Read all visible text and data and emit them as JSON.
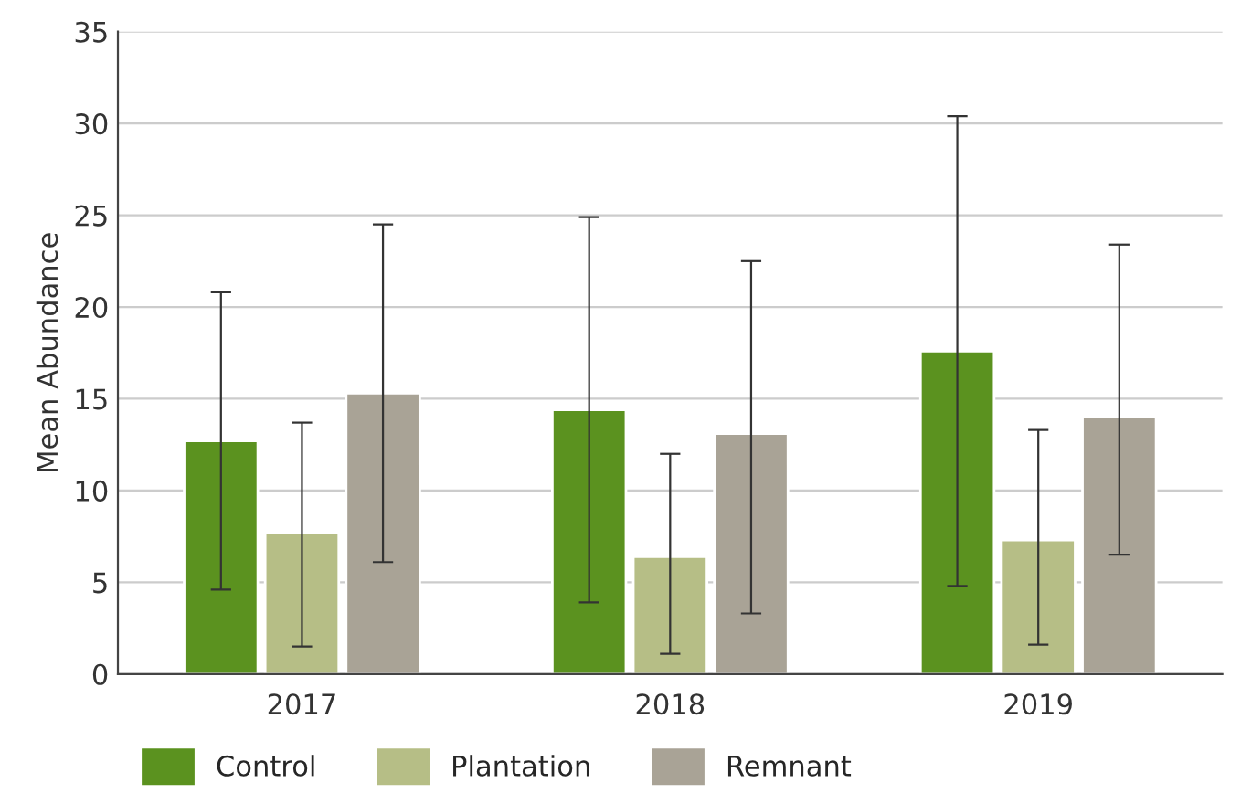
{
  "chart_data": {
    "type": "bar",
    "ylabel": "Mean Abundance",
    "categories": [
      "2017",
      "2018",
      "2019"
    ],
    "series": [
      {
        "name": "Control",
        "color": "#5b921f",
        "values": [
          12.7,
          14.4,
          17.6
        ],
        "errors": [
          [
            4.6,
            20.8
          ],
          [
            3.9,
            24.9
          ],
          [
            4.8,
            30.4
          ]
        ]
      },
      {
        "name": "Plantation",
        "color": "#b6be86",
        "values": [
          7.7,
          6.4,
          7.3
        ],
        "errors": [
          [
            1.5,
            13.7
          ],
          [
            1.1,
            12.0
          ],
          [
            1.6,
            13.3
          ]
        ]
      },
      {
        "name": "Remnant",
        "color": "#a9a396",
        "values": [
          15.3,
          13.1,
          14.0
        ],
        "errors": [
          [
            6.1,
            24.5
          ],
          [
            3.3,
            22.5
          ],
          [
            6.5,
            23.4
          ]
        ]
      }
    ],
    "ylim": [
      0,
      35
    ],
    "yticks": [
      0,
      5,
      10,
      15,
      20,
      25,
      30,
      35
    ],
    "grid": "y",
    "legend": "bottom left"
  }
}
